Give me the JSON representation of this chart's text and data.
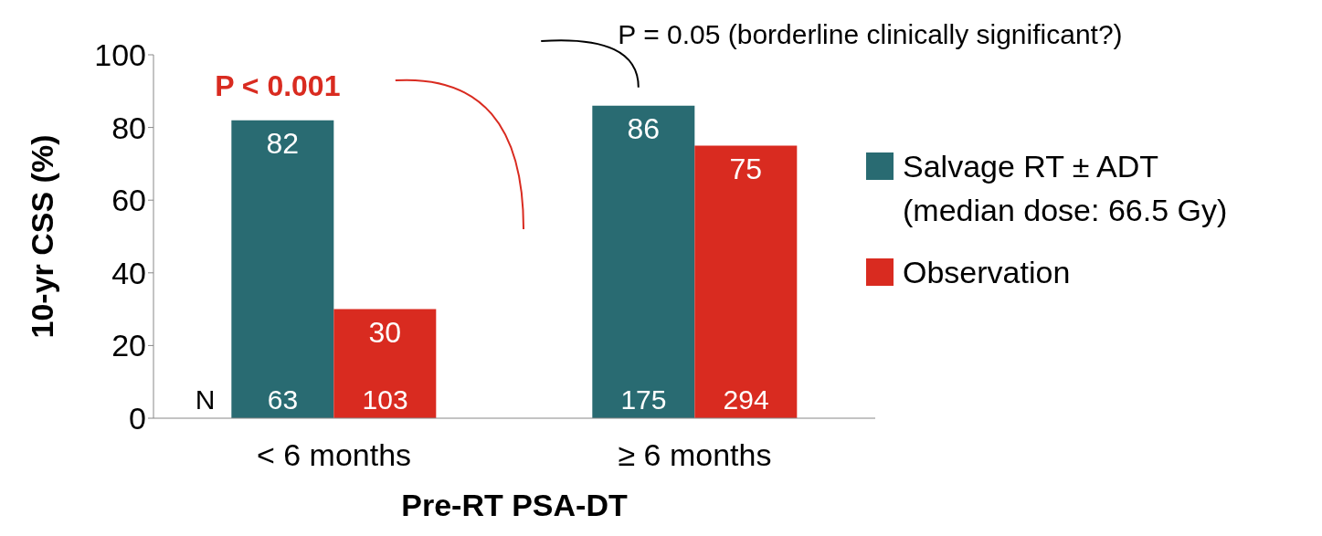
{
  "chart_data": {
    "type": "bar",
    "xlabel": "Pre-RT PSA-DT",
    "ylabel": "10-yr CSS (%)",
    "categories": [
      "< 6 months",
      "≥ 6 months"
    ],
    "series": [
      {
        "name": "Salvage RT ± ADT (median dose: 66.5 Gy)",
        "color": "#296b72",
        "values": [
          82,
          86
        ]
      },
      {
        "name": "Observation",
        "color": "#d92b20",
        "values": [
          30,
          75
        ]
      }
    ],
    "ylim": [
      0,
      100
    ],
    "yticks": [
      0,
      20,
      40,
      60,
      80,
      100
    ],
    "grid": false,
    "legend": "right",
    "data_labels": true,
    "annotations": [
      "N",
      "P < 0.001",
      "P = 0.05 (borderline clinically significant?)",
      {
        "text": "63",
        "x": "< 6 months",
        "y": 0
      },
      {
        "text": "103",
        "x": "< 6 months",
        "y": 0
      },
      {
        "text": "175",
        "x": "≥ 6 months",
        "y": 0
      },
      {
        "text": "294",
        "x": "≥ 6 months",
        "y": 0
      }
    ]
  }
}
